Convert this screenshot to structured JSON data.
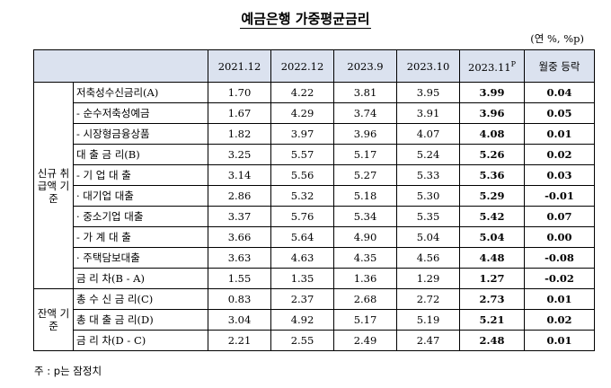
{
  "title": "예금은행 가중평균금리",
  "unit": "(연 %, %p)",
  "columns": [
    "2021.12",
    "2022.12",
    "2023.9",
    "2023.10",
    "2023.11",
    "월중 등락"
  ],
  "highlight_suffix": "P",
  "groups": [
    "신규 취급액 기준",
    "잔액 기준"
  ],
  "rows": [
    {
      "label": "저축성수신금리(A)",
      "values": [
        "1.70",
        "4.22",
        "3.81",
        "3.95",
        "3.99",
        "0.04"
      ]
    },
    {
      "label": "- 순수저축성예금",
      "values": [
        "1.67",
        "4.29",
        "3.74",
        "3.91",
        "3.96",
        "0.05"
      ]
    },
    {
      "label": "- 시장형금융상품",
      "values": [
        "1.82",
        "3.97",
        "3.96",
        "4.07",
        "4.08",
        "0.01"
      ]
    },
    {
      "label": "대 출 금 리(B)",
      "values": [
        "3.25",
        "5.57",
        "5.17",
        "5.24",
        "5.26",
        "0.02"
      ]
    },
    {
      "label": "- 기 업 대 출",
      "values": [
        "3.14",
        "5.56",
        "5.27",
        "5.33",
        "5.36",
        "0.03"
      ]
    },
    {
      "label": "· 대기업 대출",
      "values": [
        "2.86",
        "5.32",
        "5.18",
        "5.30",
        "5.29",
        "-0.01"
      ]
    },
    {
      "label": "· 중소기업 대출",
      "values": [
        "3.37",
        "5.76",
        "5.34",
        "5.35",
        "5.42",
        "0.07"
      ]
    },
    {
      "label": "- 가 계 대 출",
      "values": [
        "3.66",
        "5.64",
        "4.90",
        "5.04",
        "5.04",
        "0.00"
      ]
    },
    {
      "label": "· 주택담보대출",
      "values": [
        "3.63",
        "4.63",
        "4.35",
        "4.56",
        "4.48",
        "-0.08"
      ]
    },
    {
      "label": "금 리 차(B - A)",
      "values": [
        "1.55",
        "1.35",
        "1.36",
        "1.29",
        "1.27",
        "-0.02"
      ]
    },
    {
      "label": "총 수 신 금 리(C)",
      "values": [
        "0.83",
        "2.37",
        "2.68",
        "2.72",
        "2.73",
        "0.01"
      ]
    },
    {
      "label": "총 대 출 금 리(D)",
      "values": [
        "3.04",
        "4.92",
        "5.17",
        "5.19",
        "5.21",
        "0.02"
      ]
    },
    {
      "label": "금 리 차(D - C)",
      "values": [
        "2.21",
        "2.55",
        "2.49",
        "2.47",
        "2.48",
        "0.01"
      ]
    }
  ],
  "note": "주 : p는 잠정치"
}
